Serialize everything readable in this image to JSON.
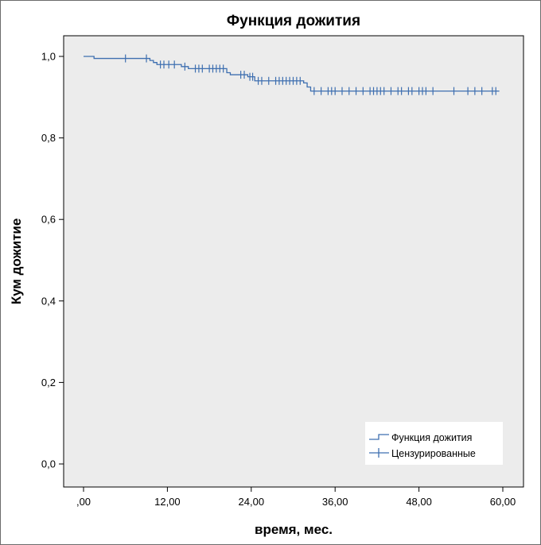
{
  "chart_data": {
    "type": "line",
    "title": "Функция дожития",
    "xlabel": "время, мес.",
    "ylabel": "Кум дожитие",
    "xlim": [
      0,
      60
    ],
    "ylim": [
      0,
      1
    ],
    "x_ticks": [
      ",00",
      "12,00",
      "24,00",
      "36,00",
      "48,00",
      "60,00"
    ],
    "y_ticks": [
      "0,0",
      "0,2",
      "0,4",
      "0,6",
      "0,8",
      "1,0"
    ],
    "grid": false,
    "legend_position": "bottom-right",
    "colors": {
      "line": "#3e6fb0",
      "plot_bg": "#ececec",
      "axis": "#000000"
    },
    "series": [
      {
        "name": "Функция дожития",
        "step": [
          [
            0.0,
            1.0
          ],
          [
            1.5,
            0.995
          ],
          [
            9.5,
            0.99
          ],
          [
            10.0,
            0.985
          ],
          [
            10.5,
            0.98
          ],
          [
            14.0,
            0.975
          ],
          [
            15.0,
            0.97
          ],
          [
            20.5,
            0.96
          ],
          [
            21.0,
            0.955
          ],
          [
            23.5,
            0.95
          ],
          [
            24.5,
            0.94
          ],
          [
            31.5,
            0.935
          ],
          [
            32.0,
            0.925
          ],
          [
            32.5,
            0.915
          ],
          [
            59.5,
            0.915
          ]
        ]
      },
      {
        "name": "Цензурированные",
        "censored": [
          [
            6.0,
            0.995
          ],
          [
            9.0,
            0.995
          ],
          [
            11.0,
            0.98
          ],
          [
            11.5,
            0.98
          ],
          [
            12.2,
            0.98
          ],
          [
            13.0,
            0.98
          ],
          [
            14.5,
            0.975
          ],
          [
            16.0,
            0.97
          ],
          [
            16.5,
            0.97
          ],
          [
            17.0,
            0.97
          ],
          [
            18.0,
            0.97
          ],
          [
            18.5,
            0.97
          ],
          [
            19.0,
            0.97
          ],
          [
            19.5,
            0.97
          ],
          [
            20.0,
            0.97
          ],
          [
            22.5,
            0.955
          ],
          [
            23.0,
            0.955
          ],
          [
            23.8,
            0.95
          ],
          [
            24.2,
            0.95
          ],
          [
            25.0,
            0.94
          ],
          [
            25.5,
            0.94
          ],
          [
            26.5,
            0.94
          ],
          [
            27.5,
            0.94
          ],
          [
            28.0,
            0.94
          ],
          [
            28.5,
            0.94
          ],
          [
            29.0,
            0.94
          ],
          [
            29.5,
            0.94
          ],
          [
            30.0,
            0.94
          ],
          [
            30.5,
            0.94
          ],
          [
            31.0,
            0.94
          ],
          [
            33.0,
            0.915
          ],
          [
            34.0,
            0.915
          ],
          [
            35.0,
            0.915
          ],
          [
            35.5,
            0.915
          ],
          [
            36.0,
            0.915
          ],
          [
            37.0,
            0.915
          ],
          [
            38.0,
            0.915
          ],
          [
            39.0,
            0.915
          ],
          [
            40.0,
            0.915
          ],
          [
            41.0,
            0.915
          ],
          [
            41.5,
            0.915
          ],
          [
            42.0,
            0.915
          ],
          [
            42.5,
            0.915
          ],
          [
            43.0,
            0.915
          ],
          [
            44.0,
            0.915
          ],
          [
            45.0,
            0.915
          ],
          [
            45.5,
            0.915
          ],
          [
            46.5,
            0.915
          ],
          [
            47.0,
            0.915
          ],
          [
            48.0,
            0.915
          ],
          [
            48.5,
            0.915
          ],
          [
            49.0,
            0.915
          ],
          [
            50.0,
            0.915
          ],
          [
            53.0,
            0.915
          ],
          [
            55.0,
            0.915
          ],
          [
            56.0,
            0.915
          ],
          [
            57.0,
            0.915
          ],
          [
            58.5,
            0.915
          ],
          [
            59.0,
            0.915
          ]
        ]
      }
    ]
  }
}
